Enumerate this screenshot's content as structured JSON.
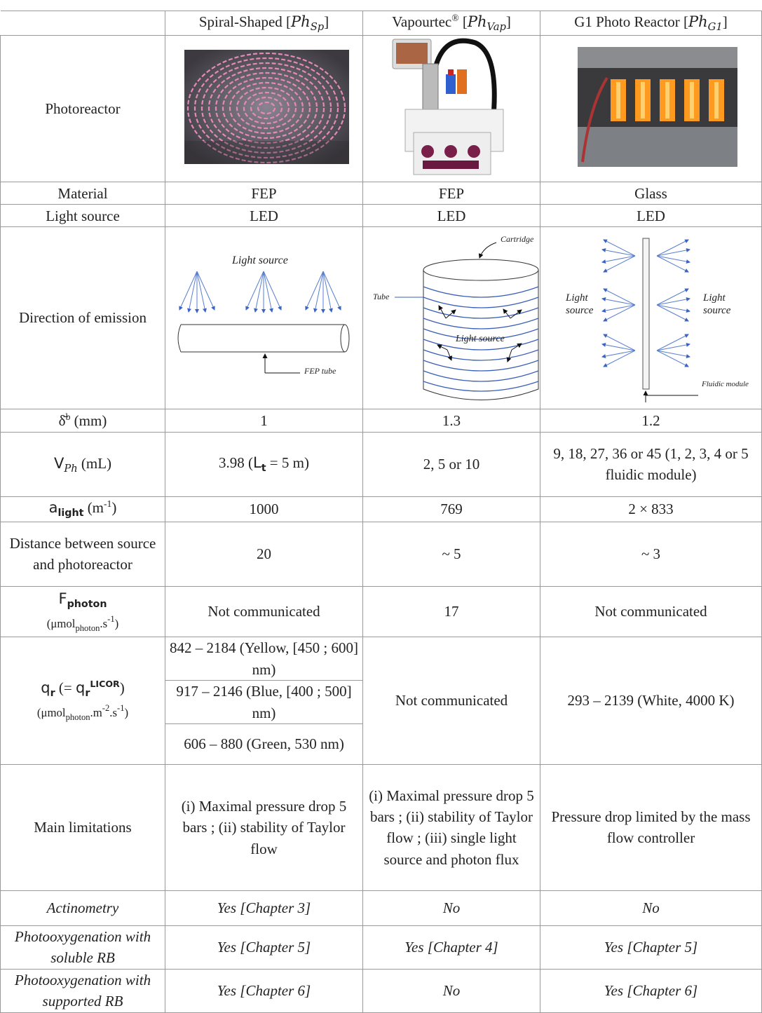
{
  "header": [
    [
      {
        "text": "Spiral-Shaped ["
      },
      {
        "text": "Ph",
        "kind": "math"
      },
      {
        "text": "Sp",
        "kind": "math-sub"
      },
      {
        "text": "]"
      }
    ],
    [
      {
        "text": "Vapourtec"
      },
      {
        "text": "®",
        "kind": "sup"
      },
      {
        "text": " ["
      },
      {
        "text": "Ph",
        "kind": "math"
      },
      {
        "text": "Vap",
        "kind": "math-sub"
      },
      {
        "text": "]"
      }
    ],
    [
      {
        "text": "G1 Photo Reactor ["
      },
      {
        "text": "Ph",
        "kind": "math"
      },
      {
        "text": "G1",
        "kind": "math-sub"
      },
      {
        "text": "]"
      }
    ]
  ],
  "rows": [
    {
      "label": "Photoreactor"
    },
    {
      "label": "Material",
      "cells": [
        "FEP",
        "FEP",
        "Glass"
      ]
    },
    {
      "label": "Light source",
      "cells": [
        "LED",
        "LED",
        "LED"
      ]
    },
    {
      "label": "Direction of emission",
      "diagrams": [
        {
          "labels": [
            "Light source",
            "FEP tube"
          ]
        },
        {
          "labels": [
            "Cartridge",
            "Tube",
            "Light source"
          ]
        },
        {
          "labels": [
            "Light source",
            "Light source",
            "Fluidic module"
          ]
        }
      ]
    },
    {
      "label": [
        {
          "text": "δ̄"
        },
        {
          "text": "b",
          "kind": "sup"
        },
        {
          "text": " (mm)"
        }
      ],
      "cells": [
        1,
        1.3,
        1.2
      ]
    },
    {
      "label": [
        {
          "text": "V",
          "kind": "sans"
        },
        {
          "text": "Ph",
          "kind": "math-sub"
        },
        {
          "text": " (mL)"
        }
      ],
      "cells": [
        [
          {
            "text": "3.98 ("
          },
          {
            "text": "L",
            "kind": "sans"
          },
          {
            "text": "t",
            "kind": "sans-sub"
          },
          {
            "text": " = 5 m)"
          }
        ],
        "2, 5 or 10",
        "9, 18, 27, 36 or 45 (1, 2, 3, 4 or 5 fluidic module)"
      ]
    },
    {
      "label": [
        {
          "text": "a",
          "kind": "sans"
        },
        {
          "text": "light",
          "kind": "sans-sub"
        },
        {
          "text": " (m"
        },
        {
          "text": "-1",
          "kind": "sup"
        },
        {
          "text": ")"
        }
      ],
      "cells": [
        1000,
        769,
        "2 × 833"
      ]
    },
    {
      "label": "Distance between source and photoreactor",
      "cells": [
        20,
        "~ 5",
        "~ 3"
      ]
    },
    {
      "label": [
        [
          {
            "text": "F",
            "kind": "sans"
          },
          {
            "text": "photon",
            "kind": "sans-sub"
          }
        ],
        [
          {
            "text": "(μmol",
            "kind": "small"
          },
          {
            "text": "photon",
            "kind": "small-sub"
          },
          {
            "text": ".s",
            "kind": "small"
          },
          {
            "text": "-1",
            "kind": "small-sup"
          },
          {
            "text": ")",
            "kind": "small"
          }
        ]
      ],
      "cells": [
        "Not communicated",
        17,
        "Not communicated"
      ]
    },
    {
      "label": [
        [
          {
            "text": "q",
            "kind": "sans"
          },
          {
            "text": "r",
            "kind": "sans-sub"
          },
          {
            "text": " (= "
          },
          {
            "text": "q",
            "kind": "sans"
          },
          {
            "text": "r",
            "kind": "sans-sub"
          },
          {
            "text": "LICOR",
            "kind": "sans-sup"
          },
          {
            "text": ")"
          }
        ],
        [
          {
            "text": "(μmol",
            "kind": "small"
          },
          {
            "text": "photon",
            "kind": "small-sub"
          },
          {
            "text": ".m",
            "kind": "small"
          },
          {
            "text": "-2",
            "kind": "small-sup"
          },
          {
            "text": ".s",
            "kind": "small"
          },
          {
            "text": "-1",
            "kind": "small-sup"
          },
          {
            "text": ")",
            "kind": "small"
          }
        ]
      ],
      "cells": [
        [
          "842 – 2184 (Yellow, [450 ; 600] nm)",
          "917 – 2146 (Blue, [400 ; 500] nm)",
          "606 – 880 (Green, 530 nm)"
        ],
        "Not communicated",
        "293 – 2139 (White, 4000 K)"
      ]
    },
    {
      "label": "Main limitations",
      "cells": [
        "(i) Maximal pressure drop 5 bars ; (ii) stability of Taylor flow",
        "(i) Maximal pressure drop 5 bars ; (ii) stability of Taylor flow ; (iii) single light source and photon flux",
        "Pressure drop limited by the mass flow controller"
      ]
    },
    {
      "label": "Actinometry",
      "cells": [
        "Yes [Chapter 3]",
        "No",
        "No"
      ]
    },
    {
      "label": "Photooxygenation with soluble RB",
      "cells": [
        "Yes [Chapter 5]",
        "Yes [Chapter 4]",
        "Yes [Chapter 5]"
      ]
    },
    {
      "label": "Photooxygenation with supported RB",
      "cells": [
        "Yes [Chapter 6]",
        "No",
        "Yes [Chapter 6]"
      ]
    }
  ]
}
